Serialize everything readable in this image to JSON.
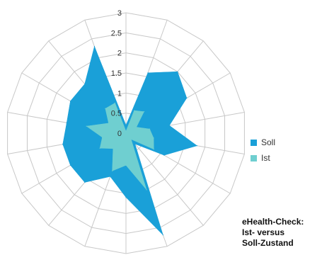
{
  "chart_data": {
    "type": "radar",
    "title": "",
    "rlim": [
      0,
      3
    ],
    "ticks": [
      "0",
      "0.5",
      "1",
      "1.5",
      "2",
      "2.5",
      "3"
    ],
    "tick_values": [
      0,
      0.5,
      1,
      1.5,
      2,
      2.5,
      3
    ],
    "spokes": 18,
    "grid": true,
    "legend_position": "right",
    "series": [
      {
        "name": "Soll",
        "color": "#1aa0d8",
        "values": [
          0.2,
          1.6,
          2.0,
          1.75,
          1.1,
          1.8,
          1.1,
          0.35,
          2.7,
          1.6,
          1.15,
          1.6,
          1.6,
          1.6,
          1.5,
          1.6,
          1.6,
          2.3
        ]
      },
      {
        "name": "Ist",
        "color": "#6fcfd0",
        "values": [
          0.05,
          0.6,
          0.7,
          0.3,
          0.6,
          0.7,
          0.8,
          0.2,
          1.5,
          0.8,
          1.0,
          0.5,
          0.75,
          0.6,
          1.0,
          0.5,
          0.8,
          0.8
        ]
      }
    ]
  },
  "caption": {
    "line1": "eHealth-Check:",
    "line2": "Ist- versus",
    "line3": "Soll-Zustand"
  }
}
